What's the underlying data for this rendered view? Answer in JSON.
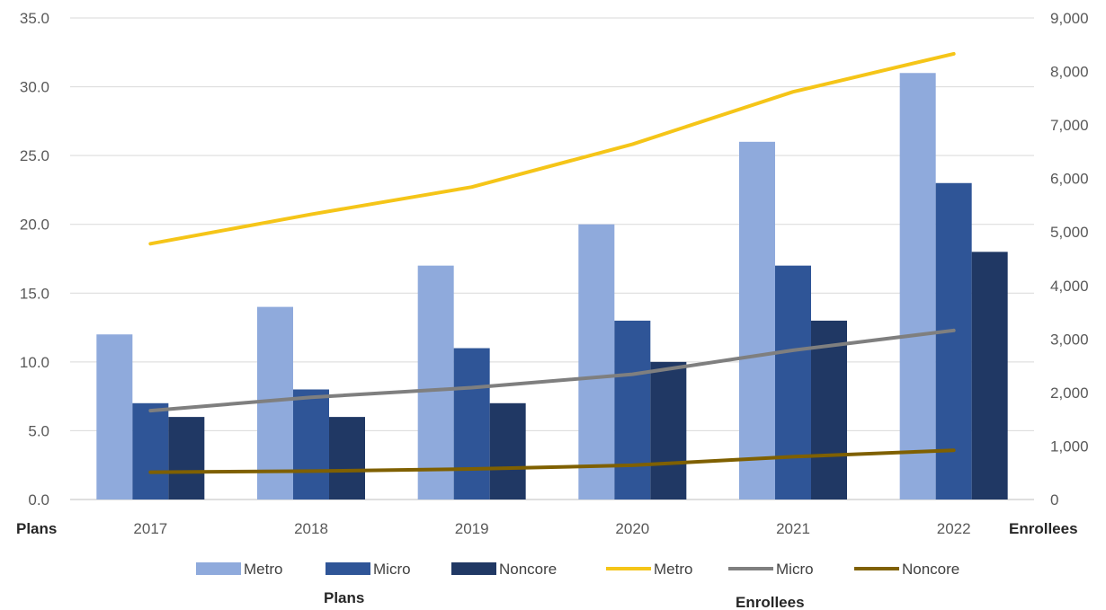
{
  "chart_data": {
    "type": "bar",
    "categories": [
      "2017",
      "2018",
      "2019",
      "2020",
      "2021",
      "2022"
    ],
    "left_axis": {
      "title": "Plans",
      "ylim": [
        0,
        35
      ],
      "ticks": [
        "0.0",
        "5.0",
        "10.0",
        "15.0",
        "20.0",
        "25.0",
        "30.0",
        "35.0"
      ]
    },
    "right_axis": {
      "title": "Enrollees",
      "ylim": [
        0,
        9000
      ],
      "ticks": [
        "0",
        "1,000",
        "2,000",
        "3,000",
        "4,000",
        "5,000",
        "6,000",
        "7,000",
        "8,000",
        "9,000"
      ]
    },
    "bar_series": [
      {
        "name": "Metro",
        "values": [
          12,
          14,
          17,
          20,
          26,
          31
        ],
        "color": "#8FAADC"
      },
      {
        "name": "Micro",
        "values": [
          7,
          8,
          11,
          13,
          17,
          23
        ],
        "color": "#2F5597"
      },
      {
        "name": "Noncore",
        "values": [
          6,
          6,
          7,
          10,
          13,
          18
        ],
        "color": "#203864"
      }
    ],
    "line_series": [
      {
        "name": "Metro",
        "values": [
          4780,
          5330,
          5840,
          6640,
          7620,
          8330
        ],
        "color": "#F5C518"
      },
      {
        "name": "Micro",
        "values": [
          1660,
          1910,
          2090,
          2340,
          2790,
          3160
        ],
        "color": "#7F7F7F"
      },
      {
        "name": "Noncore",
        "values": [
          510,
          530,
          570,
          640,
          800,
          920
        ],
        "color": "#7F6000"
      }
    ],
    "legend": {
      "placement": "bottom",
      "bar_group_label": "Plans",
      "line_group_label": "Enrollees"
    },
    "grid": true
  }
}
